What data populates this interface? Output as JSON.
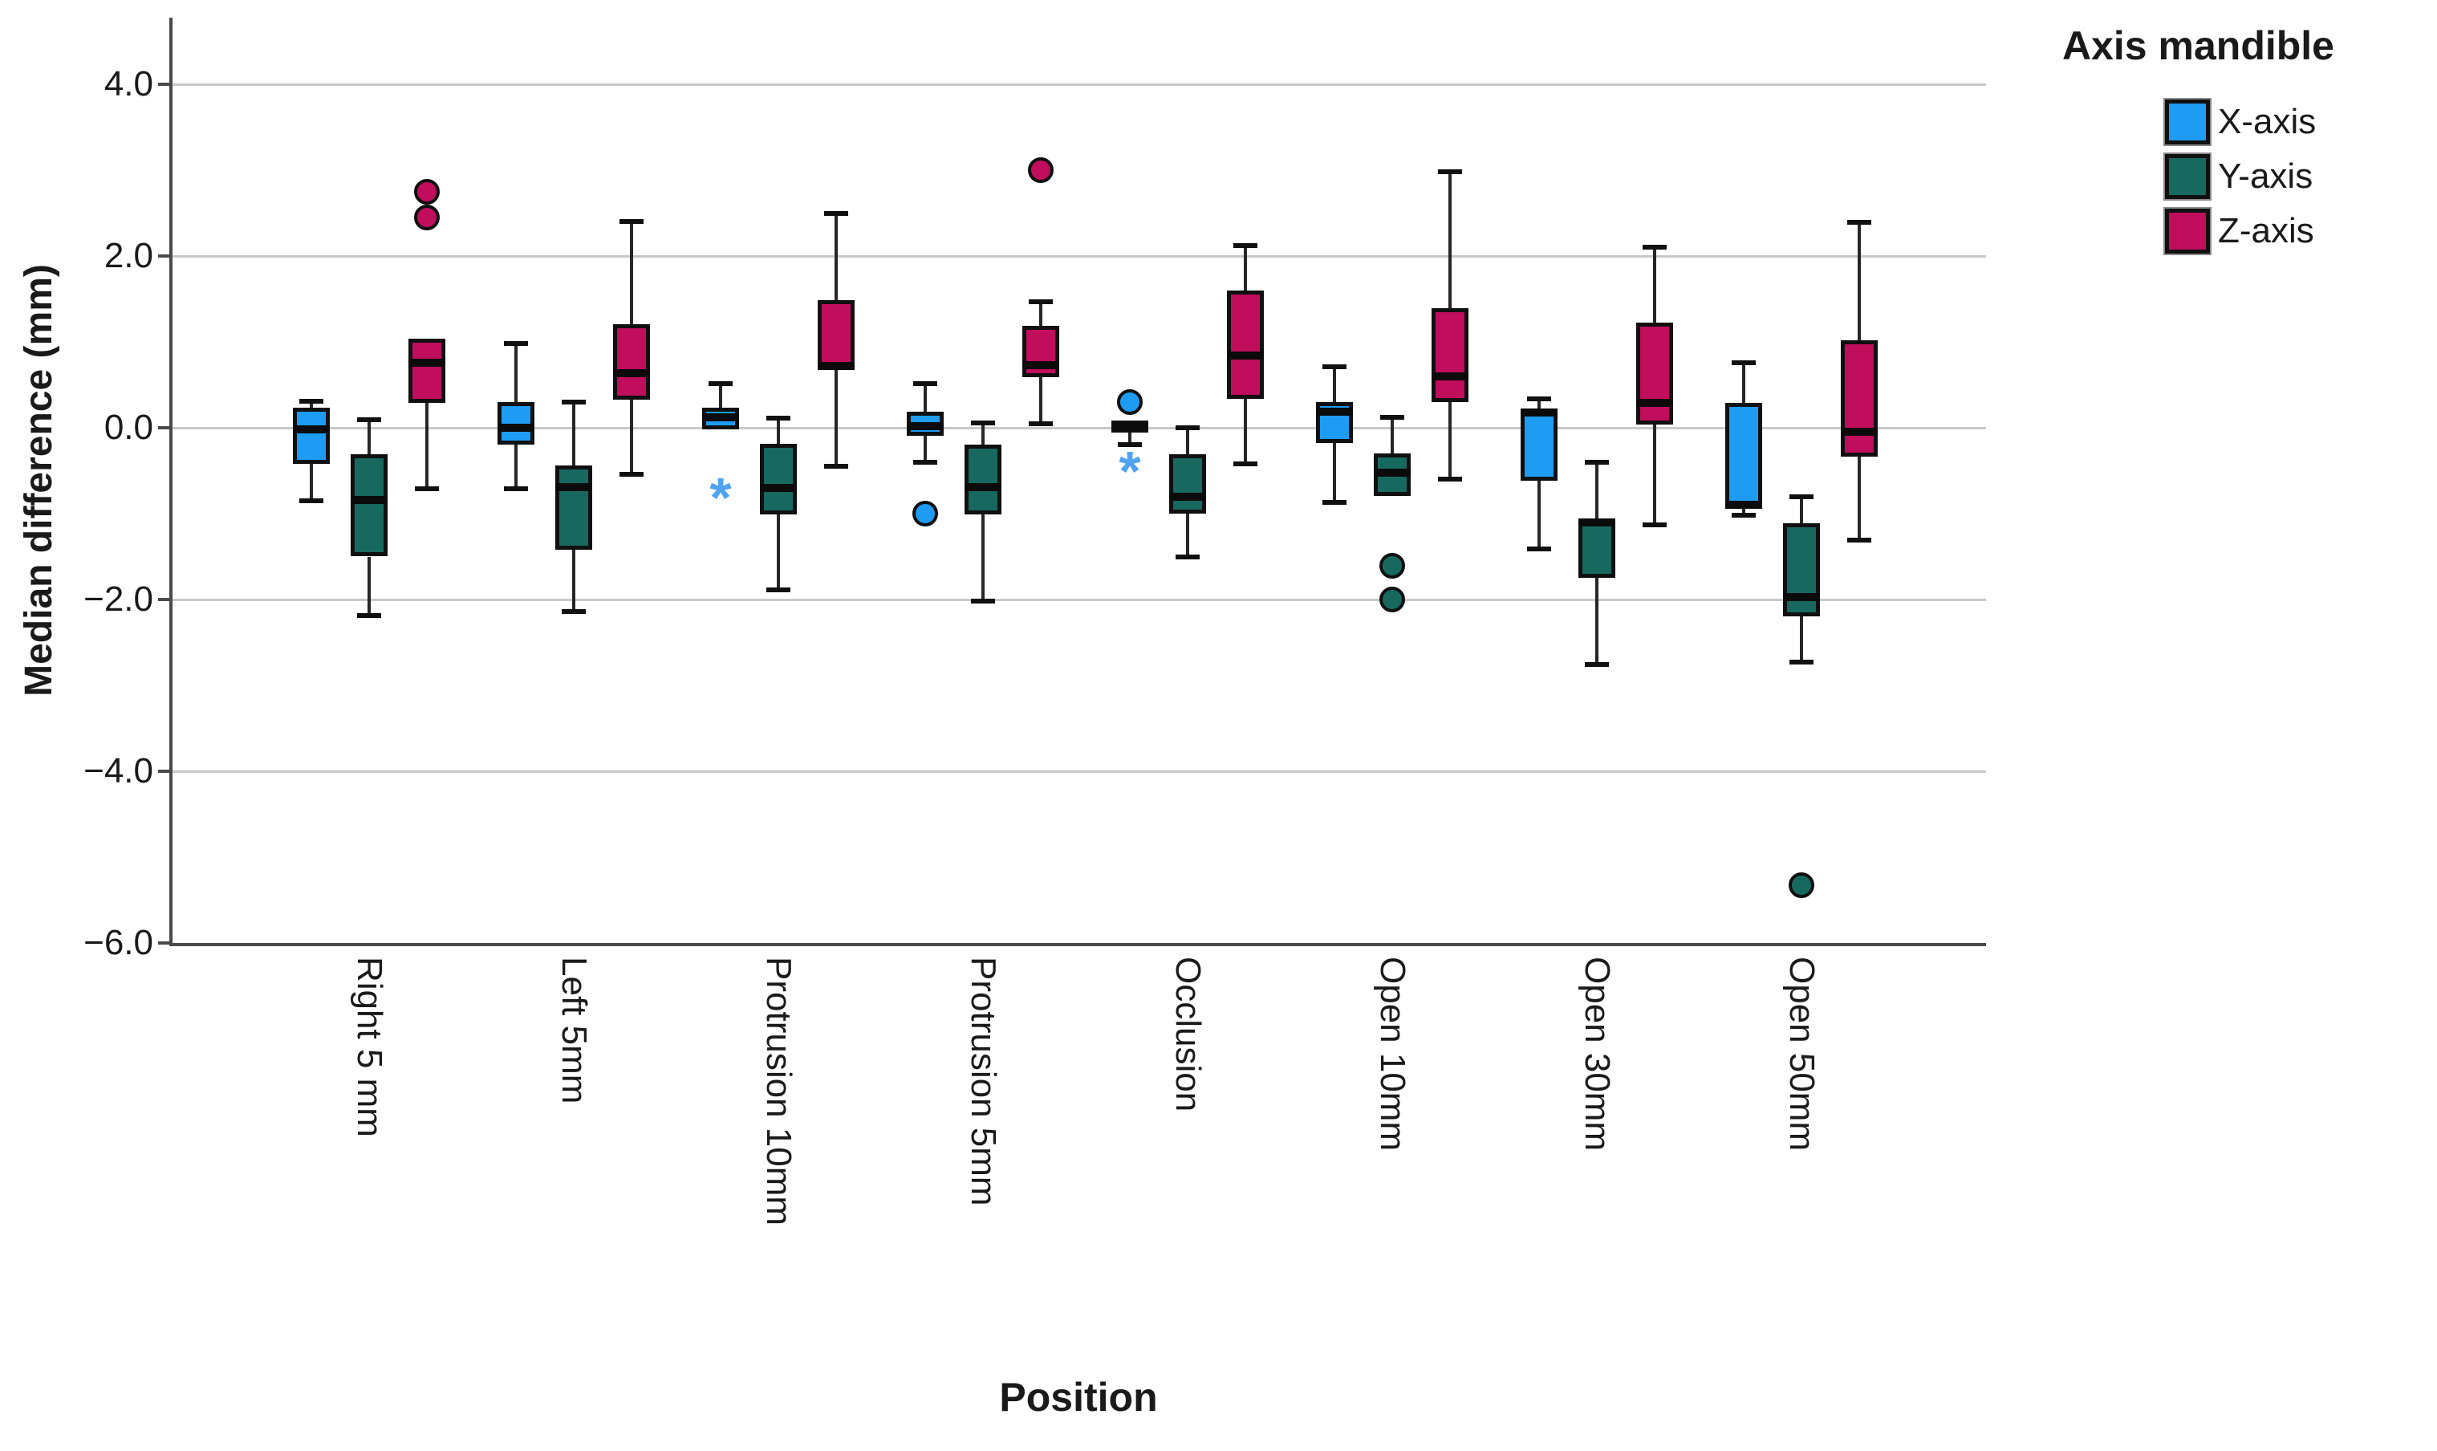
{
  "chart_data": {
    "type": "boxplot",
    "legend_title": "Axis mandible",
    "xlabel": "Position",
    "ylabel": "Median difference (mm)",
    "ylim": [
      -6.0,
      4.8
    ],
    "grid": "horizontal",
    "legend_position": "top-right",
    "yticks": [
      {
        "value": 4.0,
        "label": "4.0"
      },
      {
        "value": 2.0,
        "label": "2.0"
      },
      {
        "value": 0.0,
        "label": "0.0"
      },
      {
        "value": -2.0,
        "label": "−2.0"
      },
      {
        "value": -4.0,
        "label": "−4.0"
      },
      {
        "value": -6.0,
        "label": "−6.0"
      }
    ],
    "categories": [
      "Right 5 mm",
      "Left 5mm",
      "Protrusion 10mm",
      "Protrusion 5mm",
      "Occlusion",
      "Open 10mm",
      "Open 30mm",
      "Open 50mm"
    ],
    "series": [
      {
        "name": "X-axis",
        "color": "#1E9CF4",
        "outlier_star_color": "#4FA3F2",
        "boxes": [
          {
            "low": -0.85,
            "q1": -0.42,
            "med": -0.02,
            "q3": 0.23,
            "high": 0.31,
            "outliers": [],
            "extremes": []
          },
          {
            "low": -0.71,
            "q1": -0.2,
            "med": 0.0,
            "q3": 0.3,
            "high": 0.98,
            "outliers": [],
            "extremes": []
          },
          {
            "low": -0.02,
            "q1": -0.02,
            "med": 0.12,
            "q3": 0.23,
            "high": 0.51,
            "outliers": [],
            "extremes": [
              -0.71
            ]
          },
          {
            "low": -0.4,
            "q1": -0.09,
            "med": 0.02,
            "q3": 0.19,
            "high": 0.51,
            "outliers": [
              -1.0
            ],
            "extremes": []
          },
          {
            "low": -0.2,
            "q1": -0.06,
            "med": 0.01,
            "q3": 0.08,
            "high": 0.08,
            "outliers": [
              0.3
            ],
            "extremes": [
              -0.4
            ]
          },
          {
            "low": -0.87,
            "q1": -0.18,
            "med": 0.19,
            "q3": 0.3,
            "high": 0.71,
            "outliers": [],
            "extremes": []
          },
          {
            "low": -1.41,
            "q1": -0.62,
            "med": 0.18,
            "q3": 0.22,
            "high": 0.34,
            "outliers": [],
            "extremes": []
          },
          {
            "low": -1.02,
            "q1": -0.93,
            "med": -0.9,
            "q3": 0.29,
            "high": 0.76,
            "outliers": [],
            "extremes": []
          }
        ]
      },
      {
        "name": "Y-axis",
        "color": "#17695F",
        "outlier_star_color": "#17695F",
        "boxes": [
          {
            "low": -2.19,
            "q1": -1.5,
            "med": -0.84,
            "q3": -0.31,
            "high": 0.09,
            "outliers": [],
            "extremes": []
          },
          {
            "low": -2.14,
            "q1": -1.42,
            "med": -0.69,
            "q3": -0.44,
            "high": 0.3,
            "outliers": [],
            "extremes": []
          },
          {
            "low": -1.89,
            "q1": -1.01,
            "med": -0.7,
            "q3": -0.19,
            "high": 0.11,
            "outliers": [],
            "extremes": []
          },
          {
            "low": -2.02,
            "q1": -1.01,
            "med": -0.69,
            "q3": -0.2,
            "high": 0.06,
            "outliers": [],
            "extremes": []
          },
          {
            "low": -1.5,
            "q1": -1.0,
            "med": -0.8,
            "q3": -0.31,
            "high": 0.0,
            "outliers": [],
            "extremes": []
          },
          {
            "low": -0.79,
            "q1": -0.79,
            "med": -0.52,
            "q3": -0.3,
            "high": 0.12,
            "outliers": [
              -1.61,
              -2.0
            ],
            "extremes": []
          },
          {
            "low": -2.76,
            "q1": -1.75,
            "med": -1.1,
            "q3": -1.08,
            "high": -0.4,
            "outliers": [],
            "extremes": []
          },
          {
            "low": -2.73,
            "q1": -2.2,
            "med": -1.97,
            "q3": -1.11,
            "high": -0.8,
            "outliers": [
              -5.33
            ],
            "extremes": []
          }
        ]
      },
      {
        "name": "Z-axis",
        "color": "#C00D5C",
        "outlier_star_color": "#C00D5C",
        "boxes": [
          {
            "low": -0.71,
            "q1": 0.29,
            "med": 0.76,
            "q3": 1.04,
            "high": 1.04,
            "outliers": [
              2.45,
              2.75
            ],
            "extremes": []
          },
          {
            "low": -0.54,
            "q1": 0.33,
            "med": 0.64,
            "q3": 1.21,
            "high": 2.4,
            "outliers": [],
            "extremes": []
          },
          {
            "low": -0.45,
            "q1": 0.68,
            "med": 0.72,
            "q3": 1.49,
            "high": 2.5,
            "outliers": [],
            "extremes": []
          },
          {
            "low": 0.05,
            "q1": 0.59,
            "med": 0.73,
            "q3": 1.19,
            "high": 1.47,
            "outliers": [
              3.0
            ],
            "extremes": []
          },
          {
            "low": -0.42,
            "q1": 0.34,
            "med": 0.84,
            "q3": 1.6,
            "high": 2.12,
            "outliers": [],
            "extremes": []
          },
          {
            "low": -0.6,
            "q1": 0.3,
            "med": 0.6,
            "q3": 1.39,
            "high": 2.98,
            "outliers": [],
            "extremes": []
          },
          {
            "low": -1.13,
            "q1": 0.04,
            "med": 0.29,
            "q3": 1.22,
            "high": 2.1,
            "outliers": [],
            "extremes": []
          },
          {
            "low": -1.31,
            "q1": -0.34,
            "med": -0.05,
            "q3": 1.02,
            "high": 2.39,
            "outliers": [],
            "extremes": []
          }
        ]
      }
    ],
    "colors": {
      "gridline": "#c9c9c9",
      "axis": "#4a4a4a",
      "box_border": "#101010",
      "median": "#0b0b0b",
      "whisker": "#262626"
    }
  }
}
